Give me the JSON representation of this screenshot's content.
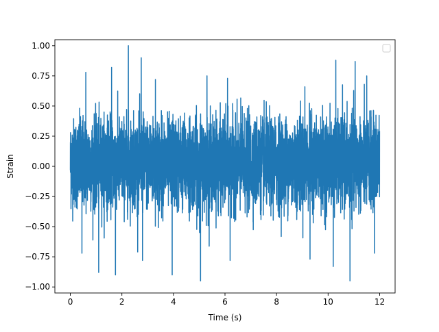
{
  "chart_data": {
    "type": "line",
    "title": "",
    "xlabel": "Time (s)",
    "ylabel": "Strain",
    "xlim": [
      -0.6,
      12.6
    ],
    "ylim": [
      -1.05,
      1.05
    ],
    "x_ticks": [
      0,
      2,
      4,
      6,
      8,
      10,
      12
    ],
    "x_tick_labels": [
      "0",
      "2",
      "4",
      "6",
      "8",
      "10",
      "12"
    ],
    "y_ticks": [
      -1.0,
      -0.75,
      -0.5,
      -0.25,
      0.0,
      0.25,
      0.5,
      0.75,
      1.0
    ],
    "y_tick_labels": [
      "−1.00",
      "−0.75",
      "−0.50",
      "−0.25",
      "0.00",
      "0.25",
      "0.50",
      "0.75",
      "1.00"
    ],
    "grid": false,
    "legend": {
      "placement": "upper right",
      "entries": []
    },
    "series": [
      {
        "color": "#1f77b4",
        "x_range": [
          0,
          12
        ],
        "typical_envelope": [
          -0.45,
          0.5
        ],
        "notable_peaks": [
          {
            "x": 0.6,
            "y": 0.78
          },
          {
            "x": 1.6,
            "y": 0.82
          },
          {
            "x": 2.25,
            "y": 1.0
          },
          {
            "x": 2.75,
            "y": 0.9
          },
          {
            "x": 3.3,
            "y": 0.72
          },
          {
            "x": 5.3,
            "y": 0.75
          },
          {
            "x": 6.1,
            "y": 0.73
          },
          {
            "x": 9.1,
            "y": 0.66
          },
          {
            "x": 10.3,
            "y": 0.88
          },
          {
            "x": 11.05,
            "y": 0.87
          },
          {
            "x": 11.5,
            "y": 0.75
          }
        ],
        "notable_troughs": [
          {
            "x": 0.45,
            "y": -0.72
          },
          {
            "x": 1.1,
            "y": -0.88
          },
          {
            "x": 1.75,
            "y": -0.9
          },
          {
            "x": 2.8,
            "y": -0.78
          },
          {
            "x": 3.95,
            "y": -0.9
          },
          {
            "x": 5.05,
            "y": -0.95
          },
          {
            "x": 6.2,
            "y": -0.78
          },
          {
            "x": 9.3,
            "y": -0.77
          },
          {
            "x": 10.2,
            "y": -0.83
          },
          {
            "x": 10.85,
            "y": -0.95
          },
          {
            "x": 11.8,
            "y": -0.72
          }
        ]
      }
    ]
  }
}
